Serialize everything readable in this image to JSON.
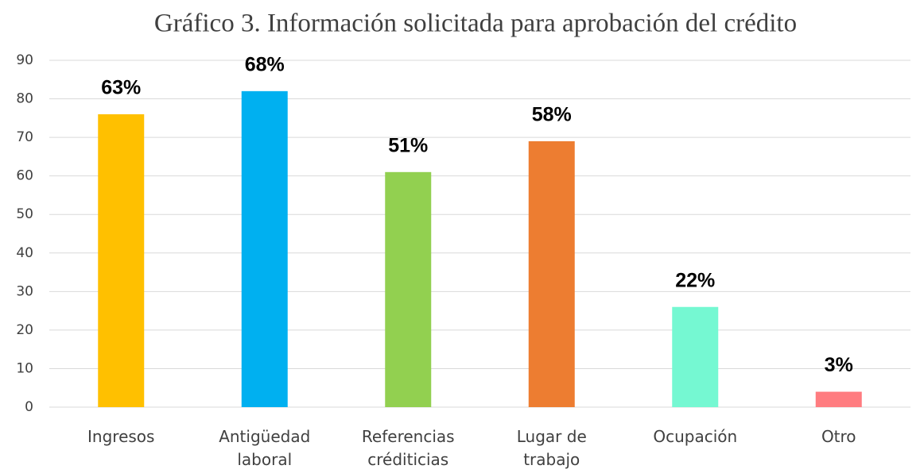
{
  "chart_data": {
    "type": "bar",
    "title": "Gráfico 3. Información solicitada para aprobación del crédito",
    "categories": [
      "Ingresos",
      "Antigüedad laboral",
      "Referencias créditicias",
      "Lugar de trabajo",
      "Ocupación",
      "Otro"
    ],
    "values": [
      76,
      82,
      61,
      69,
      26,
      4
    ],
    "colors": [
      "#FFC000",
      "#00B0F0",
      "#92D050",
      "#ED7D31",
      "#75F8D2",
      "#FF7C80"
    ],
    "data_labels": [
      {
        "value": 63,
        "label": "63%"
      },
      {
        "value": 68,
        "label": "68%"
      },
      {
        "value": 51,
        "label": "51%"
      },
      {
        "value": 58,
        "label": "58%"
      },
      {
        "value": 22,
        "label": "22%"
      },
      {
        "value": 3,
        "label": "3%"
      }
    ],
    "ylim": [
      0,
      90
    ],
    "yticks": [
      0,
      10,
      20,
      30,
      40,
      50,
      60,
      70,
      80,
      90
    ],
    "grid": true
  }
}
